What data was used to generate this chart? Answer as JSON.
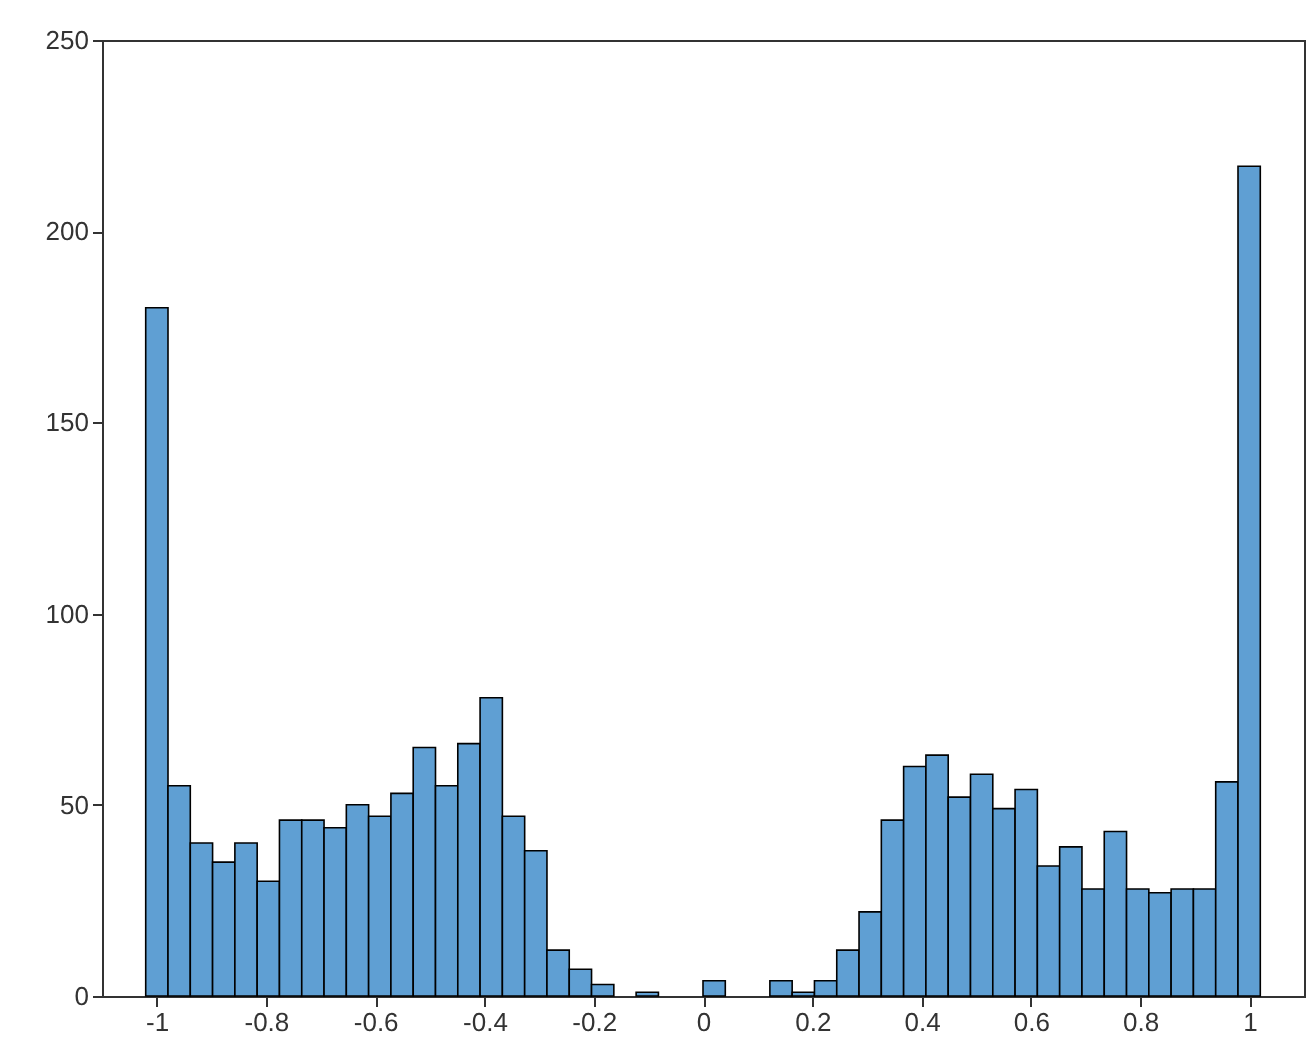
{
  "chart_data": {
    "type": "histogram",
    "bins": [
      -1.02,
      -0.9792,
      -0.9384,
      -0.8976,
      -0.8568,
      -0.816,
      -0.7752,
      -0.7344,
      -0.6936,
      -0.6528,
      -0.612,
      -0.5712,
      -0.5304,
      -0.4896,
      -0.4488,
      -0.408,
      -0.3672,
      -0.3264,
      -0.2856,
      -0.2448,
      -0.204,
      -0.1632,
      -0.1224,
      -0.0816,
      -0.0408,
      0,
      0.0408,
      0.0816,
      0.1224,
      0.1632,
      0.204,
      0.2448,
      0.2856,
      0.3264,
      0.3672,
      0.408,
      0.4488,
      0.4896,
      0.5304,
      0.5712,
      0.612,
      0.6528,
      0.6936,
      0.7344,
      0.7752,
      0.816,
      0.8568,
      0.8976,
      0.9384,
      0.9792,
      1.02
    ],
    "values": [
      180,
      55,
      40,
      35,
      40,
      30,
      46,
      46,
      44,
      50,
      47,
      53,
      65,
      55,
      66,
      78,
      47,
      38,
      12,
      7,
      3,
      0,
      1,
      0,
      0,
      4,
      0,
      0,
      4,
      1,
      4,
      12,
      22,
      46,
      60,
      63,
      52,
      58,
      49,
      54,
      34,
      39,
      28,
      43,
      28,
      27,
      28,
      28,
      56,
      217
    ],
    "color": "#5f9fd3",
    "xlim": [
      -1.1,
      1.1
    ],
    "xticks": [
      -1,
      -0.8,
      -0.6,
      -0.4,
      -0.2,
      0,
      0.2,
      0.4,
      0.6,
      0.8,
      1
    ],
    "ylim": [
      0,
      250
    ],
    "yticks": [
      0,
      50,
      100,
      150,
      200,
      250
    ],
    "grid": false
  }
}
